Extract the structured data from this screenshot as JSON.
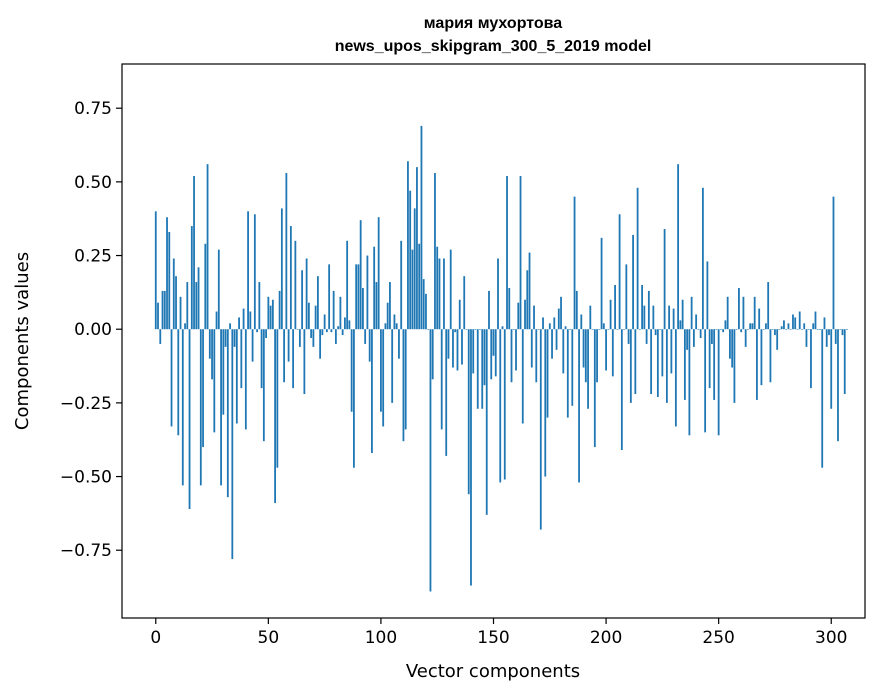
{
  "chart_data": {
    "type": "bar",
    "title": "мария мухортова",
    "subtitle": "news_upos_skipgram_300_5_2019 model",
    "xlabel": "Vector components",
    "ylabel": "Components values",
    "xlim": [
      -15,
      315
    ],
    "ylim": [
      -0.98,
      0.9
    ],
    "xticks": [
      0,
      50,
      100,
      150,
      200,
      250,
      300
    ],
    "xtick_labels": [
      "0",
      "50",
      "100",
      "150",
      "200",
      "250",
      "300"
    ],
    "yticks": [
      0.75,
      0.5,
      0.25,
      0.0,
      -0.25,
      -0.5,
      -0.75
    ],
    "ytick_labels": [
      "0.75",
      "0.50",
      "0.25",
      "0.00",
      "−0.25",
      "−0.50",
      "−0.75"
    ],
    "bar_color": "#1f77b4",
    "values": [
      0.4,
      0.09,
      -0.05,
      0.13,
      0.13,
      0.38,
      0.33,
      -0.33,
      0.24,
      0.18,
      -0.36,
      0.11,
      -0.53,
      0.02,
      0.16,
      -0.61,
      0.35,
      0.52,
      0.16,
      0.21,
      -0.53,
      -0.4,
      0.29,
      0.56,
      -0.1,
      -0.17,
      -0.35,
      0.06,
      0.27,
      -0.53,
      -0.29,
      -0.06,
      -0.57,
      0.02,
      -0.78,
      -0.06,
      -0.32,
      0.04,
      -0.2,
      0.07,
      -0.34,
      0.4,
      0.06,
      -0.11,
      0.39,
      -0.01,
      0.16,
      -0.2,
      -0.38,
      -0.03,
      0.11,
      0.08,
      0.1,
      -0.59,
      -0.47,
      0.13,
      0.41,
      -0.18,
      0.53,
      -0.11,
      0.35,
      -0.2,
      0.3,
      0.0,
      -0.06,
      0.2,
      -0.22,
      0.24,
      0.09,
      -0.03,
      -0.06,
      0.08,
      0.18,
      -0.1,
      -0.02,
      0.05,
      -0.01,
      0.22,
      -0.01,
      0.13,
      -0.05,
      0.01,
      0.11,
      -0.02,
      0.04,
      0.3,
      0.03,
      -0.28,
      -0.47,
      0.22,
      0.22,
      0.37,
      0.14,
      -0.05,
      0.25,
      -0.11,
      -0.42,
      0.28,
      0.16,
      0.38,
      -0.28,
      -0.33,
      0.02,
      0.09,
      0.16,
      -0.25,
      0.05,
      0.02,
      -0.1,
      0.3,
      -0.38,
      -0.34,
      0.57,
      0.47,
      0.27,
      0.41,
      0.55,
      0.29,
      0.69,
      0.17,
      0.12,
      0.0,
      -0.89,
      -0.17,
      0.53,
      0.28,
      0.24,
      -0.34,
      0.24,
      -0.43,
      -0.1,
      0.27,
      -0.13,
      -0.01,
      -0.14,
      0.1,
      -0.12,
      0.18,
      0.0,
      -0.56,
      -0.87,
      -0.15,
      0.0,
      -0.27,
      0.0,
      -0.27,
      -0.19,
      -0.63,
      0.13,
      -0.17,
      -0.09,
      -0.16,
      0.24,
      -0.52,
      0.01,
      -0.51,
      0.52,
      0.14,
      -0.18,
      0.0,
      -0.14,
      0.09,
      0.52,
      -0.32,
      0.1,
      0.2,
      0.26,
      -0.13,
      0.08,
      -0.18,
      0.0,
      -0.68,
      0.04,
      -0.5,
      -0.3,
      0.02,
      -0.1,
      0.04,
      -0.07,
      0.07,
      0.11,
      -0.15,
      0.01,
      -0.3,
      0.0,
      -0.26,
      0.45,
      0.13,
      -0.52,
      0.05,
      -0.13,
      -0.18,
      -0.27,
      0.08,
      0.0,
      -0.4,
      -0.18,
      0.0,
      0.31,
      0.02,
      -0.14,
      0.0,
      0.1,
      -0.16,
      0.15,
      0.0,
      0.39,
      -0.41,
      0.0,
      0.22,
      -0.05,
      -0.25,
      0.32,
      -0.22,
      0.48,
      0.0,
      0.15,
      0.08,
      -0.05,
      0.13,
      -0.22,
      0.08,
      -0.02,
      -0.23,
      0.0,
      -0.16,
      0.34,
      -0.25,
      0.08,
      -0.15,
      0.07,
      -0.33,
      0.56,
      0.03,
      0.1,
      -0.24,
      -0.07,
      -0.36,
      0.11,
      -0.06,
      0.05,
      0.0,
      -0.03,
      0.48,
      -0.35,
      0.23,
      -0.2,
      -0.05,
      -0.24,
      0.0,
      -0.36,
      0.0,
      -0.01,
      0.03,
      0.11,
      -0.1,
      -0.13,
      -0.25,
      0.0,
      0.14,
      -0.01,
      0.11,
      -0.06,
      0.0,
      0.02,
      0.02,
      0.11,
      -0.24,
      0.07,
      -0.19,
      0.0,
      0.02,
      0.16,
      -0.18,
      0.0,
      -0.02,
      -0.07,
      0.0,
      0.01,
      0.03,
      0.0,
      0.02,
      0.0,
      0.05,
      0.04,
      0.0,
      0.06,
      0.0,
      0.02,
      -0.06,
      0.0,
      -0.2,
      0.02,
      0.06,
      0.0,
      0.0,
      -0.47,
      0.04,
      -0.06,
      -0.02,
      -0.27,
      0.45,
      -0.05,
      -0.38,
      0.0,
      -0.02,
      -0.22,
      0.0
    ]
  }
}
